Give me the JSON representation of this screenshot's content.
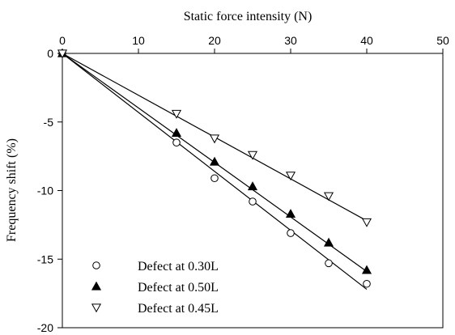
{
  "chart_data": {
    "type": "scatter",
    "xlabel": "Static force intensity (N)",
    "ylabel": "Frequency shift (%)",
    "xlim": [
      0,
      50
    ],
    "ylim": [
      -20,
      0
    ],
    "x_ticks": [
      0,
      10,
      20,
      30,
      40,
      50
    ],
    "y_ticks": [
      0,
      -5,
      -10,
      -15,
      -20
    ],
    "x_axis_position": "top",
    "grid": false,
    "legend_position": "bottom-left",
    "series": [
      {
        "name": "Defect at 0.30L",
        "marker": "open-circle",
        "color": "#000000",
        "x": [
          0,
          15,
          20,
          25,
          30,
          35,
          40
        ],
        "y": [
          0,
          -6.5,
          -9.1,
          -10.8,
          -13.1,
          -15.3,
          -16.8
        ],
        "fit_line": {
          "x": [
            0,
            40
          ],
          "y": [
            0,
            -17.2
          ]
        }
      },
      {
        "name": "Defect at 0.50L",
        "marker": "filled-triangle-up",
        "color": "#000000",
        "x": [
          0,
          15,
          20,
          25,
          30,
          35,
          40
        ],
        "y": [
          0,
          -5.8,
          -7.9,
          -9.7,
          -11.7,
          -13.8,
          -15.8
        ],
        "fit_line": {
          "x": [
            0,
            40
          ],
          "y": [
            0,
            -15.9
          ]
        }
      },
      {
        "name": "Defect at 0.45L",
        "marker": "open-triangle-down",
        "color": "#000000",
        "x": [
          0,
          15,
          20,
          25,
          30,
          35,
          40
        ],
        "y": [
          0,
          -4.4,
          -6.2,
          -7.4,
          -8.9,
          -10.4,
          -12.3
        ],
        "fit_line": {
          "x": [
            0,
            40
          ],
          "y": [
            0,
            -12.2
          ]
        }
      }
    ]
  }
}
